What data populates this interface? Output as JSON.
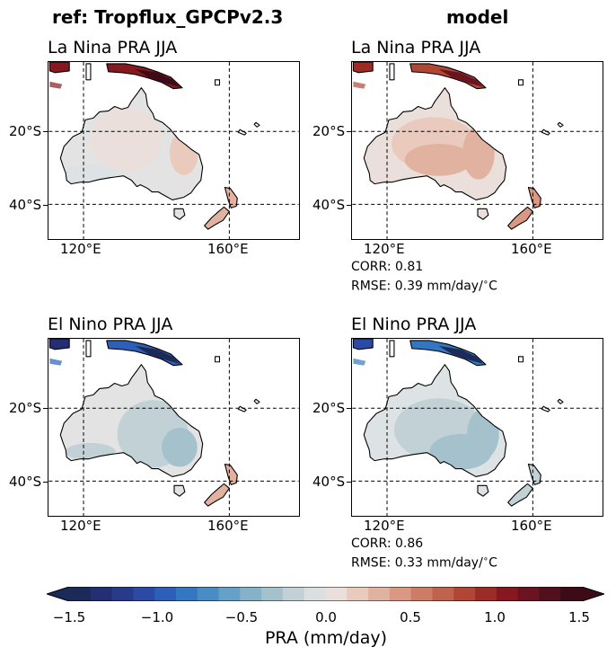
{
  "figure": {
    "column_titles": {
      "ref": "ref: Tropflux_GPCPv2.3",
      "model": "model"
    },
    "panels": [
      {
        "title": "La Nina PRA JJA",
        "column": "ref",
        "row": 0
      },
      {
        "title": "La Nina PRA JJA",
        "column": "model",
        "row": 0
      },
      {
        "title": "El Nino PRA JJA",
        "column": "ref",
        "row": 1
      },
      {
        "title": "El Nino PRA JJA",
        "column": "model",
        "row": 1
      }
    ],
    "lat_ticks": [
      "20°S",
      "40°S"
    ],
    "lon_ticks": [
      "120°E",
      "160°E"
    ],
    "stats": [
      {
        "corr": "CORR: 0.81",
        "rmse": "RMSE: 0.39 mm/day/$^\\circ$C"
      },
      {
        "corr": "CORR: 0.86",
        "rmse": "RMSE: 0.33 mm/day/$^\\circ$C"
      }
    ],
    "colorbar": {
      "ticks": [
        "−1.5",
        "−1.0",
        "−0.5",
        "0.0",
        "0.5",
        "1.0",
        "1.5"
      ],
      "label": "PRA (mm/day)",
      "range": [
        -1.5,
        1.5
      ],
      "colors": [
        "#1c2a59",
        "#232f72",
        "#283a8a",
        "#2c49a3",
        "#2e5fb8",
        "#3477c1",
        "#4a8dc6",
        "#66a0c7",
        "#86b2c9",
        "#a5c2cc",
        "#c2d1d6",
        "#dcdfe0",
        "#eadfda",
        "#e9cabd",
        "#e1b2a0",
        "#d89883",
        "#cd7d66",
        "#c0634c",
        "#b04735",
        "#9c2c26",
        "#85191f",
        "#6b1420",
        "#52101e",
        "#3c0b17"
      ],
      "extend_low_color": "#1c2a59",
      "extend_high_color": "#3c0b17"
    }
  }
}
